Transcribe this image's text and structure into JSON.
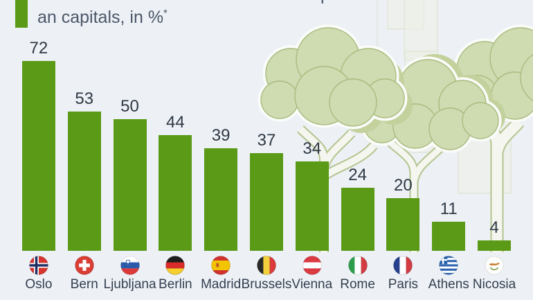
{
  "header": {
    "title_lines": [
      "Tree cover rate in a selection of Europe",
      "an capitals, in %"
    ],
    "title_superscript": "*",
    "accent_color": "#5a9a16",
    "title_color": "#4b5768"
  },
  "chart_data": {
    "type": "bar",
    "title": "Tree cover rate in a selection of European capitals, in %*",
    "categories": [
      "Oslo",
      "Bern",
      "Ljubljana",
      "Berlin",
      "Madrid",
      "Brussels",
      "Vienna",
      "Rome",
      "Paris",
      "Athens",
      "Nicosia"
    ],
    "values": [
      72,
      53,
      50,
      44,
      39,
      37,
      34,
      24,
      20,
      11,
      4
    ],
    "flags": [
      "norway",
      "switzerland",
      "slovenia",
      "germany",
      "spain",
      "belgium",
      "austria",
      "italy",
      "france",
      "greece",
      "cyprus"
    ],
    "bar_color": "#5a9a16",
    "value_label_color": "#2e3844",
    "category_label_color": "#333e4e",
    "value_labels_position": "above bars",
    "grid": false,
    "legend": false,
    "ylim": [
      0,
      75
    ]
  },
  "background": {
    "page_color": "#edf1f6",
    "tree_canopy_fill": "#cfdbb1",
    "tree_canopy_stroke": "#a8bc7f",
    "tree_canopy_shadow": "#c3d19d",
    "trunk_fill": "#f4f6ef",
    "trunk_stroke": "#b4c48e",
    "building_stroke": "#e1e6d9"
  }
}
